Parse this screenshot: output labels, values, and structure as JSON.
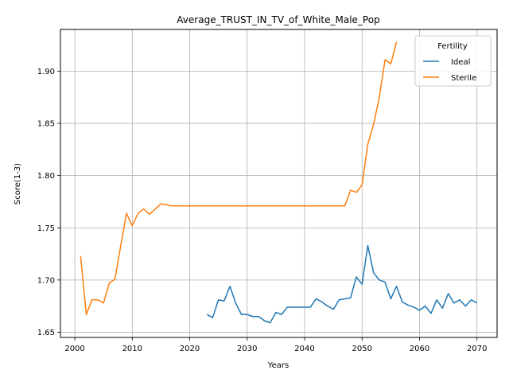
{
  "chart_data": {
    "type": "line",
    "title": "Average_TRUST_IN_TV_of_White_Male_Pop",
    "xlabel": "Years",
    "ylabel": "Score(1-3)",
    "xlim": [
      1997.5,
      2073.5
    ],
    "ylim": [
      1.645,
      1.94
    ],
    "xticks": [
      2000,
      2010,
      2020,
      2030,
      2040,
      2050,
      2060,
      2070
    ],
    "yticks": [
      1.65,
      1.7,
      1.75,
      1.8,
      1.85,
      1.9
    ],
    "ytick_labels": [
      "1.65",
      "1.70",
      "1.75",
      "1.80",
      "1.85",
      "1.90"
    ],
    "grid": true,
    "legend": {
      "title": "Fertility",
      "position": "top-right"
    },
    "series": [
      {
        "name": "Ideal",
        "color": "#1f77b4",
        "x": [
          2023,
          2024,
          2025,
          2026,
          2027,
          2028,
          2029,
          2030,
          2031,
          2032,
          2033,
          2034,
          2035,
          2036,
          2037,
          2038,
          2039,
          2040,
          2041,
          2042,
          2043,
          2044,
          2045,
          2046,
          2047,
          2048,
          2049,
          2050,
          2051,
          2052,
          2053,
          2054,
          2055,
          2056,
          2057,
          2058,
          2059,
          2060,
          2061,
          2062,
          2063,
          2064,
          2065,
          2066,
          2067,
          2068,
          2069,
          2070
        ],
        "y": [
          1.667,
          1.664,
          1.681,
          1.68,
          1.694,
          1.678,
          1.667,
          1.667,
          1.665,
          1.665,
          1.661,
          1.659,
          1.669,
          1.667,
          1.674,
          1.674,
          1.674,
          1.674,
          1.674,
          1.682,
          1.679,
          1.675,
          1.672,
          1.681,
          1.682,
          1.683,
          1.703,
          1.696,
          1.733,
          1.707,
          1.7,
          1.698,
          1.682,
          1.694,
          1.679,
          1.676,
          1.674,
          1.671,
          1.675,
          1.668,
          1.681,
          1.673,
          1.687,
          1.678,
          1.681,
          1.675,
          1.681,
          1.678
        ]
      },
      {
        "name": "Sterile",
        "color": "#ff7f0e",
        "x": [
          2001,
          2002,
          2003,
          2004,
          2005,
          2006,
          2007,
          2008,
          2009,
          2010,
          2011,
          2012,
          2013,
          2014,
          2015,
          2016,
          2017,
          2018,
          2019,
          2020,
          2021,
          2022,
          2023,
          2024,
          2025,
          2026,
          2027,
          2028,
          2029,
          2030,
          2031,
          2032,
          2033,
          2034,
          2035,
          2036,
          2037,
          2038,
          2039,
          2040,
          2041,
          2042,
          2043,
          2044,
          2045,
          2046,
          2047,
          2048,
          2049,
          2050,
          2051,
          2052,
          2053,
          2054,
          2055,
          2056
        ],
        "y": [
          1.723,
          1.667,
          1.681,
          1.681,
          1.678,
          1.697,
          1.701,
          1.733,
          1.764,
          1.752,
          1.764,
          1.768,
          1.763,
          1.768,
          1.773,
          1.772,
          1.771,
          1.771,
          1.771,
          1.771,
          1.771,
          1.771,
          1.771,
          1.771,
          1.771,
          1.771,
          1.771,
          1.771,
          1.771,
          1.771,
          1.771,
          1.771,
          1.771,
          1.771,
          1.771,
          1.771,
          1.771,
          1.771,
          1.771,
          1.771,
          1.771,
          1.771,
          1.771,
          1.771,
          1.771,
          1.771,
          1.771,
          1.786,
          1.784,
          1.791,
          1.83,
          1.849,
          1.875,
          1.911,
          1.907,
          1.928
        ]
      }
    ]
  }
}
